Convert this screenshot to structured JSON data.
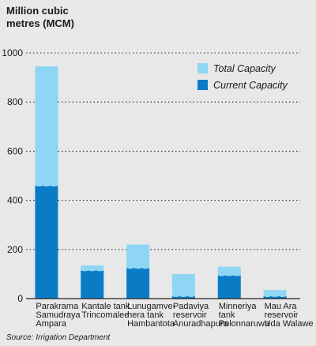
{
  "chart_data": {
    "type": "bar",
    "ylabel_lines": [
      "Million cubic",
      "metres (MCM)"
    ],
    "ylim": [
      0,
      1000
    ],
    "yticks": [
      0,
      200,
      400,
      600,
      800,
      1000
    ],
    "grid": true,
    "legend_position": "top-right",
    "categories": [
      [
        "Parakrama",
        "Samudraya",
        "Ampara"
      ],
      [
        "Kantale tank",
        "Trincomalee"
      ],
      [
        "Lunugamve-",
        "hera tank",
        "Hambantota"
      ],
      [
        "Padaviya",
        "reservoir",
        "Anuradhapura"
      ],
      [
        "Minneriya",
        "tank",
        "Polonnaruwa"
      ],
      [
        "Mau Ara",
        "reservoir",
        "Uda Walawe"
      ]
    ],
    "series": [
      {
        "name": "Total Capacity",
        "color": "#8fd6f4",
        "values": [
          945,
          135,
          220,
          100,
          130,
          35
        ]
      },
      {
        "name": "Current Capacity",
        "color": "#0a7cc6",
        "values": [
          460,
          115,
          125,
          10,
          95,
          10
        ]
      }
    ],
    "source": "Source: Irrigation Department"
  }
}
